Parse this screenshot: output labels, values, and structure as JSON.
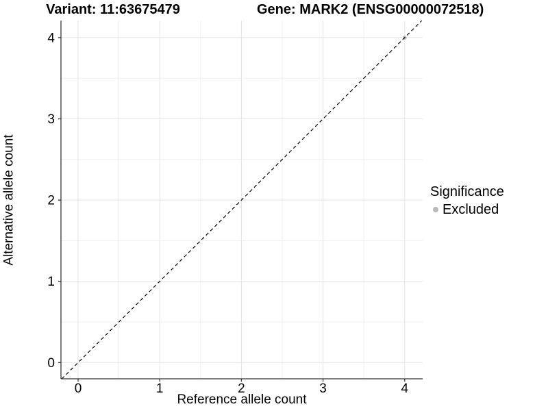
{
  "chart_data": {
    "type": "scatter",
    "title_left": "Variant: 11:63675479",
    "title_right": "Gene: MARK2 (ENSG00000072518)",
    "xlabel": "Reference allele count",
    "ylabel": "Alternative allele count",
    "xlim": [
      -0.21,
      4.22
    ],
    "ylim": [
      -0.2,
      4.21
    ],
    "x_ticks": [
      0,
      1,
      2,
      3,
      4
    ],
    "y_ticks": [
      0,
      1,
      2,
      3,
      4
    ],
    "x_minor_ticks": [
      0.5,
      1.5,
      2.5,
      3.5
    ],
    "y_minor_ticks": [
      0.5,
      1.5,
      2.5,
      3.5
    ],
    "grid": {
      "major_color": "#e4e4e4",
      "minor_color": "#efefef"
    },
    "axis_line_color": "#333333",
    "tick_label_color": "#000000",
    "reference_line": {
      "kind": "identity",
      "t": [
        -0.2,
        4.21
      ],
      "style": "dashed",
      "color": "#000000"
    },
    "series": [
      {
        "name": "Excluded",
        "color": "#b9b9b9",
        "points": [
          [
            4,
            4
          ]
        ]
      }
    ],
    "legend": {
      "position": "right",
      "title": "Significance",
      "items": [
        {
          "label": "Excluded",
          "color": "#b9b9b9"
        }
      ]
    }
  }
}
